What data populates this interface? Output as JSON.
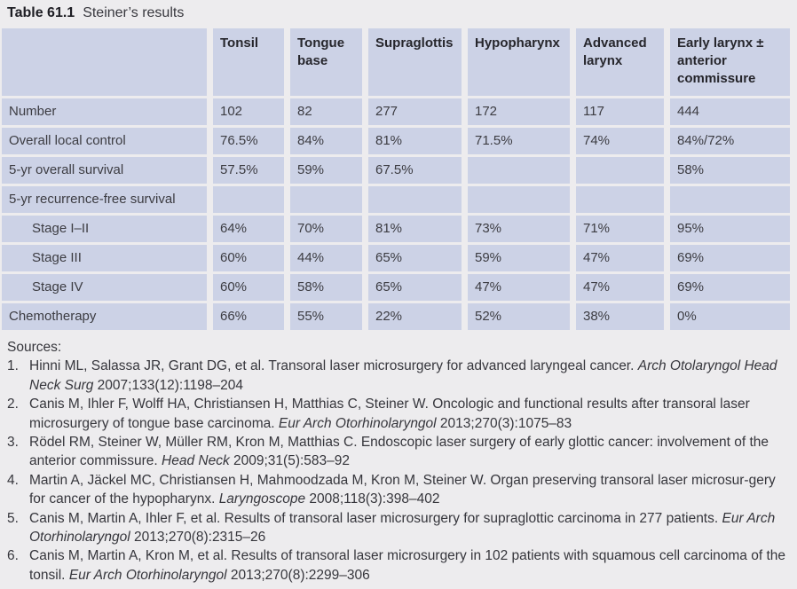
{
  "title": {
    "label": "Table 61.1",
    "caption": "Steiner’s results"
  },
  "table": {
    "columns": [
      "",
      "Tonsil",
      "Tongue base",
      "Supraglottis",
      "Hypopharynx",
      "Advanced larynx",
      "Early larynx ± anterior commissure"
    ],
    "rows": [
      {
        "label": "Number",
        "values": [
          "102",
          "82",
          "277",
          "172",
          "117",
          "444"
        ]
      },
      {
        "label": "Overall local control",
        "values": [
          "76.5%",
          "84%",
          "81%",
          "71.5%",
          "74%",
          "84%/72%"
        ]
      },
      {
        "label": "5-yr overall survival",
        "values": [
          "57.5%",
          "59%",
          "67.5%",
          "",
          "",
          "58%"
        ]
      },
      {
        "label": "5-yr recurrence-free survival",
        "values": [
          "",
          "",
          "",
          "",
          "",
          ""
        ]
      },
      {
        "label": "Stage I–II",
        "values": [
          "64%",
          "70%",
          "81%",
          "73%",
          "71%",
          "95%"
        ]
      },
      {
        "label": "Stage III",
        "values": [
          "60%",
          "44%",
          "65%",
          "59%",
          "47%",
          "69%"
        ]
      },
      {
        "label": "Stage IV",
        "values": [
          "60%",
          "58%",
          "65%",
          "47%",
          "47%",
          "69%"
        ]
      },
      {
        "label": "Chemotherapy",
        "values": [
          "66%",
          "55%",
          "22%",
          "52%",
          "38%",
          "0%"
        ]
      }
    ]
  },
  "sources": {
    "heading": "Sources:",
    "items": [
      {
        "num": "1.",
        "pre": "Hinni ML, Salassa JR, Grant DG, et al. Transoral laser microsurgery for advanced laryngeal cancer. ",
        "journal": "Arch Otolaryngol Head Neck Surg",
        "post": " 2007;133(12):1198–204"
      },
      {
        "num": "2.",
        "pre": "Canis M, Ihler F, Wolff HA, Christiansen H, Matthias C, Steiner W. Oncologic and functional results after transoral laser microsurgery of tongue base carcinoma. ",
        "journal": "Eur Arch Otorhinolaryngol",
        "post": " 2013;270(3):1075–83"
      },
      {
        "num": "3.",
        "pre": "Rödel RM, Steiner W, Müller RM, Kron M, Matthias C. Endoscopic laser surgery of early glottic cancer: involvement of the anterior commissure. ",
        "journal": "Head Neck",
        "post": " 2009;31(5):583–92"
      },
      {
        "num": "4.",
        "pre": "Martin A, Jäckel MC, Christiansen H, Mahmoodzada M, Kron M, Steiner W. Organ preserving transoral laser microsur-gery for cancer of the hypopharynx. ",
        "journal": "Laryngoscope",
        "post": " 2008;118(3):398–402"
      },
      {
        "num": "5.",
        "pre": "Canis M, Martin A, Ihler F, et al. Results of transoral laser microsurgery for supraglottic carcinoma in 277 patients. ",
        "journal": "Eur Arch Otorhinolaryngol",
        "post": " 2013;270(8):2315–26"
      },
      {
        "num": "6.",
        "pre": "Canis M, Martin A, Kron M, et al. Results of transoral laser microsurgery in 102 patients with squamous cell carcinoma of the tonsil. ",
        "journal": "Eur Arch Otorhinolaryngol",
        "post": " 2013;270(8):2299–306"
      }
    ]
  },
  "colors": {
    "page_background": "#edecee",
    "cell_background": "#ccd2e6",
    "gutter": "#ffffff",
    "text": "#3c3c42"
  }
}
